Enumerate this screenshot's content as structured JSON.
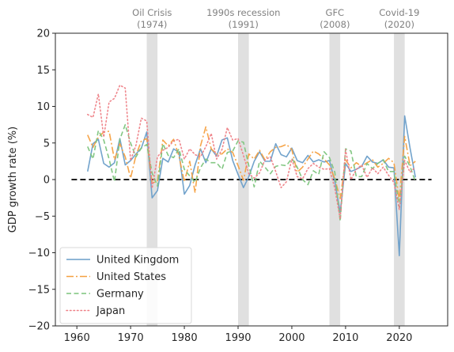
{
  "chart_data": {
    "type": "line",
    "title": "",
    "xlabel": "",
    "ylabel": "GDP growth rate (%)",
    "xlim": [
      1956,
      2029
    ],
    "ylim": [
      -20,
      20
    ],
    "xticks": [
      1960,
      1970,
      1980,
      1990,
      2000,
      2010,
      2020
    ],
    "yticks": [
      -20,
      -15,
      -10,
      -5,
      0,
      5,
      10,
      15,
      20
    ],
    "reference_line": {
      "y": 0,
      "x_range": [
        1959,
        2026
      ],
      "color": "#000000",
      "style": "dashed"
    },
    "grid": false,
    "legend_position": "lower-left",
    "events": [
      {
        "name": "Oil Crisis",
        "year_label": "(1974)",
        "x_start": 1973,
        "x_end": 1975
      },
      {
        "name": "1990s recession",
        "year_label": "(1991)",
        "x_start": 1990,
        "x_end": 1992
      },
      {
        "name": "GFC",
        "year_label": "(2008)",
        "x_start": 2007,
        "x_end": 2009
      },
      {
        "name": "Covid-19",
        "year_label": "(2020)",
        "x_start": 2019,
        "x_end": 2021
      }
    ],
    "series": [
      {
        "name": "United Kingdom",
        "color": "#6a9ec9",
        "dash": "solid",
        "x": [
          1962,
          1963,
          1964,
          1965,
          1966,
          1967,
          1968,
          1969,
          1970,
          1971,
          1972,
          1973,
          1974,
          1975,
          1976,
          1977,
          1978,
          1979,
          1980,
          1981,
          1982,
          1983,
          1984,
          1985,
          1986,
          1987,
          1988,
          1989,
          1990,
          1991,
          1992,
          1993,
          1994,
          1995,
          1996,
          1997,
          1998,
          1999,
          2000,
          2001,
          2002,
          2003,
          2004,
          2005,
          2006,
          2007,
          2008,
          2009,
          2010,
          2011,
          2012,
          2013,
          2014,
          2015,
          2016,
          2017,
          2018,
          2019,
          2020,
          2021,
          2022,
          2023
        ],
        "values": [
          1.1,
          4.9,
          5.5,
          2.2,
          1.7,
          2.3,
          5.6,
          2.0,
          2.6,
          3.5,
          4.3,
          6.5,
          -2.5,
          -1.5,
          2.9,
          2.4,
          4.2,
          3.7,
          -2.0,
          -0.8,
          2.0,
          4.2,
          2.3,
          4.2,
          3.2,
          5.4,
          5.7,
          2.6,
          0.7,
          -1.1,
          0.4,
          2.5,
          3.8,
          2.5,
          2.5,
          4.9,
          3.4,
          3.1,
          4.3,
          2.6,
          2.3,
          3.3,
          2.4,
          2.7,
          2.4,
          2.6,
          -0.3,
          -4.5,
          2.2,
          1.1,
          1.4,
          1.8,
          3.2,
          2.4,
          2.2,
          2.7,
          1.7,
          1.6,
          -10.4,
          8.7,
          4.3,
          0.3
        ]
      },
      {
        "name": "United States",
        "color": "#f5a040",
        "dash": "dashdot",
        "x": [
          1962,
          1963,
          1964,
          1965,
          1966,
          1967,
          1968,
          1969,
          1970,
          1971,
          1972,
          1973,
          1974,
          1975,
          1976,
          1977,
          1978,
          1979,
          1980,
          1981,
          1982,
          1983,
          1984,
          1985,
          1986,
          1987,
          1988,
          1989,
          1990,
          1991,
          1992,
          1993,
          1994,
          1995,
          1996,
          1997,
          1998,
          1999,
          2000,
          2001,
          2002,
          2003,
          2004,
          2005,
          2006,
          2007,
          2008,
          2009,
          2010,
          2011,
          2012,
          2013,
          2014,
          2015,
          2016,
          2017,
          2018,
          2019,
          2020,
          2021,
          2022,
          2023
        ],
        "values": [
          6.1,
          4.4,
          5.8,
          6.5,
          6.6,
          2.7,
          4.9,
          3.1,
          0.2,
          3.3,
          5.3,
          5.6,
          -0.5,
          -0.2,
          5.4,
          4.6,
          5.5,
          3.2,
          -0.3,
          2.5,
          -1.8,
          4.6,
          7.2,
          4.2,
          3.5,
          3.5,
          4.2,
          3.7,
          1.9,
          -0.1,
          3.5,
          2.8,
          4.0,
          2.7,
          3.8,
          4.4,
          4.5,
          4.8,
          4.1,
          1.0,
          1.7,
          2.8,
          3.9,
          3.5,
          2.8,
          2.0,
          0.1,
          -2.6,
          2.7,
          1.6,
          2.3,
          1.8,
          2.3,
          2.7,
          1.7,
          2.2,
          2.9,
          2.3,
          -2.8,
          5.9,
          1.9,
          2.5
        ]
      },
      {
        "name": "Germany",
        "color": "#7cc47c",
        "dash": "dashed",
        "x": [
          1962,
          1963,
          1964,
          1965,
          1966,
          1967,
          1968,
          1969,
          1970,
          1971,
          1972,
          1973,
          1974,
          1975,
          1976,
          1977,
          1978,
          1979,
          1980,
          1981,
          1982,
          1983,
          1984,
          1985,
          1986,
          1987,
          1988,
          1989,
          1990,
          1991,
          1992,
          1993,
          1994,
          1995,
          1996,
          1997,
          1998,
          1999,
          2000,
          2001,
          2002,
          2003,
          2004,
          2005,
          2006,
          2007,
          2008,
          2009,
          2010,
          2011,
          2012,
          2013,
          2014,
          2015,
          2016,
          2017,
          2018,
          2019,
          2020,
          2021,
          2022,
          2023
        ],
        "values": [
          4.5,
          2.8,
          6.7,
          5.4,
          2.8,
          -0.3,
          5.5,
          7.5,
          5.0,
          3.1,
          4.3,
          4.8,
          0.9,
          -0.9,
          4.9,
          3.3,
          3.0,
          4.2,
          1.4,
          0.5,
          -0.4,
          1.6,
          2.8,
          2.3,
          2.3,
          1.4,
          3.7,
          3.9,
          5.3,
          5.1,
          1.9,
          -1.0,
          2.5,
          1.7,
          0.8,
          1.8,
          2.0,
          1.9,
          2.9,
          1.7,
          0.0,
          -0.7,
          1.2,
          0.7,
          3.8,
          3.0,
          1.0,
          -5.7,
          4.2,
          3.9,
          0.4,
          0.4,
          2.2,
          1.5,
          2.2,
          2.7,
          1.1,
          1.1,
          -3.8,
          3.2,
          1.8,
          -0.3
        ]
      },
      {
        "name": "Japan",
        "color": "#ee7f86",
        "dash": "dotted",
        "x": [
          1962,
          1963,
          1964,
          1965,
          1966,
          1967,
          1968,
          1969,
          1970,
          1971,
          1972,
          1973,
          1974,
          1975,
          1976,
          1977,
          1978,
          1979,
          1980,
          1981,
          1982,
          1983,
          1984,
          1985,
          1986,
          1987,
          1988,
          1989,
          1990,
          1991,
          1992,
          1993,
          1994,
          1995,
          1996,
          1997,
          1998,
          1999,
          2000,
          2001,
          2002,
          2003,
          2004,
          2005,
          2006,
          2007,
          2008,
          2009,
          2010,
          2011,
          2012,
          2013,
          2014,
          2015,
          2016,
          2017,
          2018,
          2019,
          2020,
          2021,
          2022,
          2023
        ],
        "values": [
          8.9,
          8.5,
          11.7,
          5.8,
          10.6,
          11.1,
          12.9,
          12.5,
          2.6,
          4.7,
          8.4,
          8.0,
          -1.2,
          3.1,
          4.0,
          4.4,
          5.3,
          5.5,
          2.8,
          4.2,
          3.4,
          3.1,
          4.5,
          6.3,
          2.8,
          4.1,
          7.1,
          5.4,
          5.6,
          3.3,
          0.8,
          0.2,
          0.9,
          2.7,
          3.1,
          1.1,
          -1.1,
          -0.3,
          2.8,
          0.4,
          0.1,
          1.5,
          2.2,
          1.7,
          1.4,
          1.5,
          -1.2,
          -5.4,
          4.1,
          0.0,
          1.4,
          2.0,
          0.3,
          1.6,
          0.8,
          1.7,
          0.6,
          -0.4,
          -4.1,
          2.6,
          1.0,
          1.7
        ]
      }
    ]
  }
}
